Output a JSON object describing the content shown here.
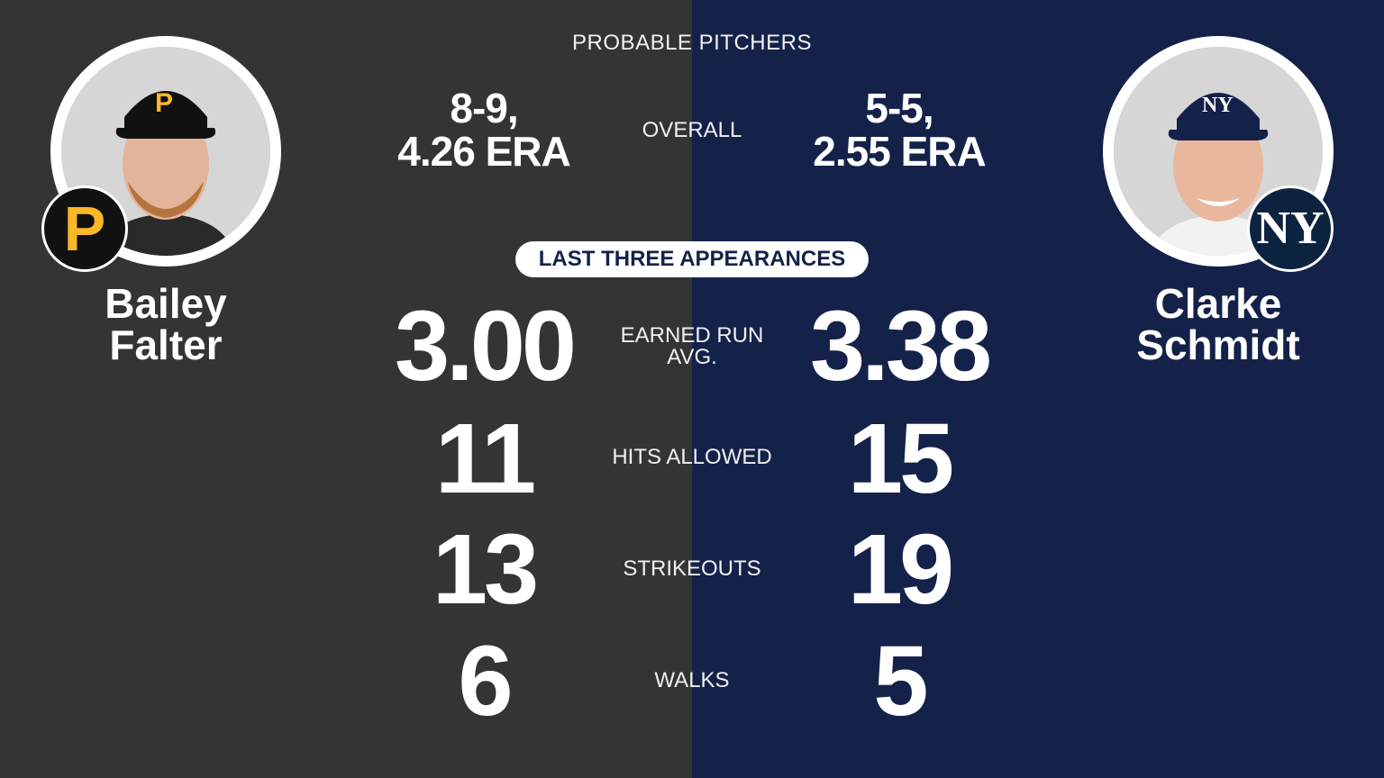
{
  "title": "PROBABLE PITCHERS",
  "section_label": "LAST THREE APPEARANCES",
  "colors": {
    "left_bg": "#343434",
    "right_bg": "#14224a",
    "pirates_gold": "#fdb827",
    "yankees_navy": "#0c2340"
  },
  "left_player": {
    "first_name": "Bailey",
    "last_name": "Falter",
    "logo_letter": "P",
    "logo_icon": "pirates-logo-icon",
    "photo_icon": "player-headshot-icon"
  },
  "right_player": {
    "first_name": "Clarke",
    "last_name": "Schmidt",
    "logo_letter": "NY",
    "logo_icon": "yankees-logo-icon",
    "photo_icon": "player-headshot-icon"
  },
  "overall": {
    "label": "OVERALL",
    "left_line1": "8-9,",
    "left_line2": "4.26 ERA",
    "right_line1": "5-5,",
    "right_line2": "2.55 ERA"
  },
  "stats": [
    {
      "label_line1": "EARNED RUN",
      "label_line2": "AVG.",
      "left": "3.00",
      "right": "3.38"
    },
    {
      "label_line1": "HITS ALLOWED",
      "label_line2": "",
      "left": "11",
      "right": "15"
    },
    {
      "label_line1": "STRIKEOUTS",
      "label_line2": "",
      "left": "13",
      "right": "19"
    },
    {
      "label_line1": "WALKS",
      "label_line2": "",
      "left": "6",
      "right": "5"
    }
  ]
}
